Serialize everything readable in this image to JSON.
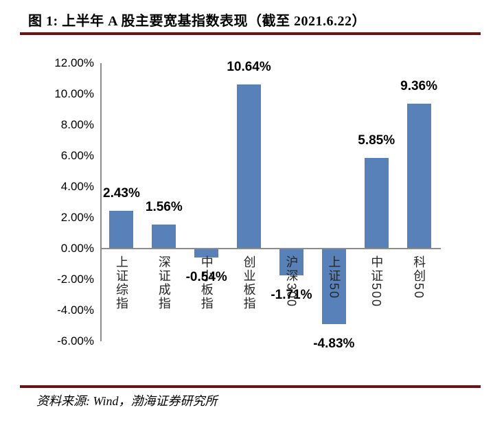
{
  "page": {
    "title": "图 1: 上半年 A 股主要宽基指数表现（截至 2021.6.22）",
    "source": "资料来源: Wind，渤海证券研究所"
  },
  "colors": {
    "bar": "#5881BA",
    "rule": "#701212",
    "axis": "#8C8C8C",
    "value_label": "#000000",
    "category_label": "#262626"
  },
  "chart_data": {
    "type": "bar",
    "title": "上半年A股主要宽基指数表现（截至2021.6.22）",
    "categories": [
      "上证综指",
      "深证成指",
      "中小板指",
      "创业板指",
      "沪深300",
      "上证50",
      "中证500",
      "科创50"
    ],
    "values": [
      2.43,
      1.56,
      -0.54,
      10.64,
      -1.71,
      -4.83,
      5.85,
      9.36
    ],
    "value_labels": [
      "2.43%",
      "1.56%",
      "-0.54%",
      "10.64%",
      "-1.71%",
      "-4.83%",
      "5.85%",
      "9.36%"
    ],
    "xlabel": "",
    "ylabel": "",
    "ylim": [
      -6,
      12
    ],
    "ytick_step": 2,
    "ytick_labels": [
      "12.00%",
      "10.00%",
      "8.00%",
      "6.00%",
      "4.00%",
      "2.00%",
      "0.00%",
      "-2.00%",
      "-4.00%",
      "-6.00%"
    ],
    "grid": false,
    "legend": null,
    "bar_color": "#5881BA",
    "category_label_orientation": "vertical"
  }
}
